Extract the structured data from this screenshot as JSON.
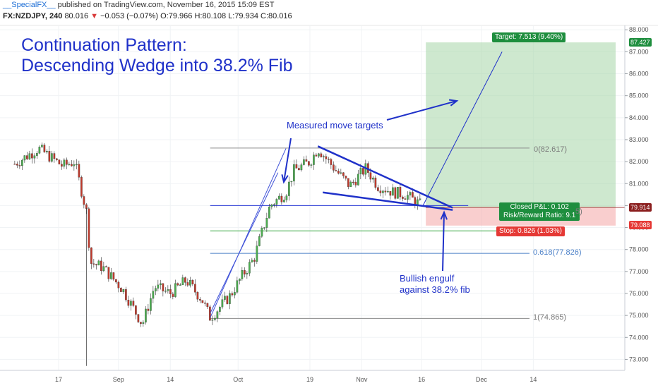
{
  "header": {
    "author": "__SpecialFX__",
    "published": "published on TradingView.com, November 16, 2015 15:09 EST",
    "symbol_line": "FX:NZDJPY, 240",
    "last": "80.016",
    "change_arrow": "▼",
    "change": "−0.053 (−0.07%)",
    "ohlc": "O:79.966 H:80.108 L:79.934 C:80.016"
  },
  "annotations": {
    "title_line1": "Continuation Pattern:",
    "title_line2": "Descending Wedge into 38.2% Fib",
    "measured": "Measured move targets",
    "engulf1": "Bullish engulf",
    "engulf2": "against 38.2% fib"
  },
  "tags": {
    "target": "Target: 7.513 (9.40%)",
    "pl": "Closed P&L: 0.102",
    "rr": "Risk/Reward Ratio: 9.1",
    "stop": "Stop: 0.826 (1.03%)"
  },
  "fib": {
    "f0": "0(82.617)",
    "f618": "0.618(77.826)",
    "f1": "1(74.865)",
    "f382_partial": "5)"
  },
  "price_tags": {
    "target": "87.427",
    "current": "79.914",
    "stop": "79.088"
  },
  "chart_data": {
    "type": "candlestick",
    "symbol": "FX:NZDJPY",
    "interval": "240",
    "ylim": [
      72.5,
      88.2
    ],
    "y_ticks": [
      73.0,
      74.0,
      75.0,
      76.0,
      77.0,
      78.0,
      79.0,
      80.0,
      81.0,
      82.0,
      83.0,
      84.0,
      85.0,
      86.0,
      87.0,
      88.0
    ],
    "x_ticks": [
      "17",
      "Sep",
      "14",
      "Oct",
      "19",
      "Nov",
      "16",
      "Dec",
      "14"
    ],
    "price_path": [
      [
        "Aug 6",
        81.9
      ],
      [
        "Aug 12",
        82.6
      ],
      [
        "Aug 18",
        81.8
      ],
      [
        "Aug 21",
        82.0
      ],
      [
        "Aug 24",
        79.7
      ],
      [
        "Aug 25",
        77.4
      ],
      [
        "Aug 28",
        77.2
      ],
      [
        "Sep 2",
        76.2
      ],
      [
        "Sep 7",
        74.6
      ],
      [
        "Sep 10",
        76.3
      ],
      [
        "Sep 14",
        76.0
      ],
      [
        "Sep 18",
        76.6
      ],
      [
        "Sep 22",
        75.7
      ],
      [
        "Sep 24",
        74.9
      ],
      [
        "Sep 29",
        75.9
      ],
      [
        "Oct 2",
        76.8
      ],
      [
        "Oct 5",
        77.6
      ],
      [
        "Oct 7",
        78.8
      ],
      [
        "Oct 9",
        80.0
      ],
      [
        "Oct 13",
        80.6
      ],
      [
        "Oct 15",
        81.6
      ],
      [
        "Oct 19",
        82.0
      ],
      [
        "Oct 21",
        82.6
      ],
      [
        "Oct 26",
        81.5
      ],
      [
        "Oct 29",
        80.9
      ],
      [
        "Nov 2",
        81.7
      ],
      [
        "Nov 5",
        80.9
      ],
      [
        "Nov 9",
        80.6
      ],
      [
        "Nov 12",
        80.5
      ],
      [
        "Nov 16",
        80.0
      ]
    ],
    "fib_levels": [
      {
        "label": "0",
        "value": 82.617
      },
      {
        "label": "0.382",
        "value": 80.0
      },
      {
        "label": "0.618",
        "value": 77.826
      },
      {
        "label": "1",
        "value": 74.865
      }
    ],
    "current_price": 79.914,
    "target_price": 87.427,
    "stop_price": 79.088,
    "green_line": 78.85,
    "colors": {
      "up": "#4caf50",
      "down": "#c0392b",
      "annotation": "#1f31c9",
      "target_zone": "#a5d6a7",
      "stop_zone": "#f4a6a6",
      "tag_green": "#1e8e3e",
      "tag_red": "#e53935"
    }
  }
}
